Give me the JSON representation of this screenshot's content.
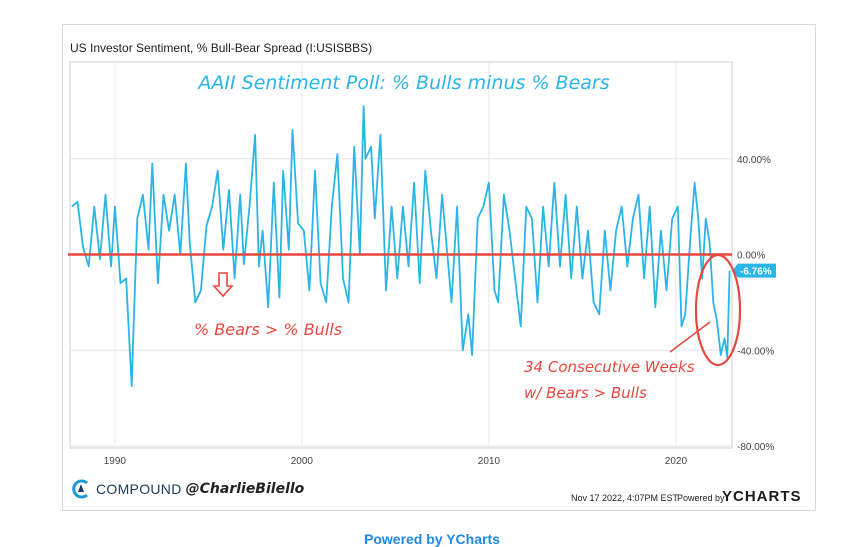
{
  "chart_data": {
    "type": "line",
    "title": "US Investor Sentiment, % Bull-Bear Spread (I:USISBBS)",
    "xlabel": "",
    "ylabel": "",
    "xlim": [
      1987.6,
      2023.0
    ],
    "ylim": [
      -80,
      80
    ],
    "x_ticks": [
      {
        "value": 1990,
        "label": "1990"
      },
      {
        "value": 2000,
        "label": "2000"
      },
      {
        "value": 2010,
        "label": "2010"
      },
      {
        "value": 2020,
        "label": "2020"
      }
    ],
    "y_ticks": [
      {
        "value": 40,
        "label": "40.00%"
      },
      {
        "value": 0,
        "label": "0.00%"
      },
      {
        "value": -40,
        "label": "-40.00%"
      },
      {
        "value": -80,
        "label": "-80.00%"
      }
    ],
    "grid": true,
    "series": [
      {
        "name": "US Investor Sentiment, % Bull-Bear Spread",
        "color": "#29b6e6",
        "last_value_label": "-6.76%",
        "last_value": -6.76,
        "points": [
          [
            1987.7,
            20
          ],
          [
            1988.0,
            22
          ],
          [
            1988.3,
            3
          ],
          [
            1988.6,
            -5
          ],
          [
            1988.9,
            20
          ],
          [
            1989.2,
            -2
          ],
          [
            1989.5,
            25
          ],
          [
            1989.8,
            -5
          ],
          [
            1990.0,
            20
          ],
          [
            1990.3,
            -12
          ],
          [
            1990.6,
            -10
          ],
          [
            1990.8,
            -40
          ],
          [
            1990.9,
            -55
          ],
          [
            1991.0,
            -30
          ],
          [
            1991.2,
            15
          ],
          [
            1991.5,
            25
          ],
          [
            1991.8,
            2
          ],
          [
            1992.0,
            38
          ],
          [
            1992.3,
            -12
          ],
          [
            1992.6,
            25
          ],
          [
            1992.9,
            10
          ],
          [
            1993.2,
            25
          ],
          [
            1993.5,
            0
          ],
          [
            1993.8,
            38
          ],
          [
            1994.0,
            5
          ],
          [
            1994.3,
            -20
          ],
          [
            1994.6,
            -15
          ],
          [
            1994.9,
            12
          ],
          [
            1995.2,
            20
          ],
          [
            1995.5,
            35
          ],
          [
            1995.8,
            2
          ],
          [
            1996.1,
            27
          ],
          [
            1996.4,
            -10
          ],
          [
            1996.7,
            25
          ],
          [
            1996.9,
            -4
          ],
          [
            1997.2,
            20
          ],
          [
            1997.5,
            50
          ],
          [
            1997.7,
            -5
          ],
          [
            1997.9,
            10
          ],
          [
            1998.2,
            -22
          ],
          [
            1998.5,
            30
          ],
          [
            1998.8,
            -18
          ],
          [
            1999.0,
            35
          ],
          [
            1999.3,
            2
          ],
          [
            1999.5,
            52
          ],
          [
            1999.8,
            13
          ],
          [
            2000.1,
            10
          ],
          [
            2000.4,
            -15
          ],
          [
            2000.7,
            35
          ],
          [
            2001.0,
            -12
          ],
          [
            2001.3,
            -20
          ],
          [
            2001.6,
            20
          ],
          [
            2001.9,
            42
          ],
          [
            2002.2,
            -10
          ],
          [
            2002.5,
            -20
          ],
          [
            2002.8,
            45
          ],
          [
            2003.1,
            0
          ],
          [
            2003.3,
            62
          ],
          [
            2003.4,
            40
          ],
          [
            2003.7,
            45
          ],
          [
            2003.9,
            15
          ],
          [
            2004.2,
            50
          ],
          [
            2004.5,
            -15
          ],
          [
            2004.8,
            20
          ],
          [
            2005.1,
            -10
          ],
          [
            2005.4,
            20
          ],
          [
            2005.7,
            -5
          ],
          [
            2006.0,
            30
          ],
          [
            2006.3,
            -12
          ],
          [
            2006.6,
            35
          ],
          [
            2006.9,
            10
          ],
          [
            2007.2,
            -10
          ],
          [
            2007.5,
            25
          ],
          [
            2007.8,
            -2
          ],
          [
            2008.0,
            -20
          ],
          [
            2008.3,
            20
          ],
          [
            2008.6,
            -40
          ],
          [
            2008.9,
            -25
          ],
          [
            2009.1,
            -42
          ],
          [
            2009.4,
            15
          ],
          [
            2009.7,
            20
          ],
          [
            2010.0,
            30
          ],
          [
            2010.3,
            -15
          ],
          [
            2010.5,
            -20
          ],
          [
            2010.8,
            25
          ],
          [
            2011.1,
            10
          ],
          [
            2011.4,
            -10
          ],
          [
            2011.7,
            -30
          ],
          [
            2012.0,
            20
          ],
          [
            2012.3,
            15
          ],
          [
            2012.6,
            -20
          ],
          [
            2012.9,
            20
          ],
          [
            2013.2,
            -5
          ],
          [
            2013.5,
            30
          ],
          [
            2013.8,
            -5
          ],
          [
            2014.1,
            25
          ],
          [
            2014.4,
            -10
          ],
          [
            2014.7,
            20
          ],
          [
            2015.0,
            -10
          ],
          [
            2015.3,
            10
          ],
          [
            2015.6,
            -20
          ],
          [
            2015.9,
            -25
          ],
          [
            2016.2,
            10
          ],
          [
            2016.5,
            -15
          ],
          [
            2016.8,
            10
          ],
          [
            2017.1,
            20
          ],
          [
            2017.4,
            -5
          ],
          [
            2017.7,
            15
          ],
          [
            2018.0,
            25
          ],
          [
            2018.3,
            -10
          ],
          [
            2018.6,
            20
          ],
          [
            2018.9,
            -22
          ],
          [
            2019.2,
            10
          ],
          [
            2019.5,
            -15
          ],
          [
            2019.8,
            15
          ],
          [
            2020.1,
            20
          ],
          [
            2020.3,
            -30
          ],
          [
            2020.5,
            -25
          ],
          [
            2020.8,
            10
          ],
          [
            2021.0,
            30
          ],
          [
            2021.2,
            15
          ],
          [
            2021.4,
            -10
          ],
          [
            2021.6,
            15
          ],
          [
            2021.8,
            5
          ],
          [
            2022.0,
            -20
          ],
          [
            2022.2,
            -28
          ],
          [
            2022.4,
            -42
          ],
          [
            2022.6,
            -35
          ],
          [
            2022.75,
            -43
          ],
          [
            2022.87,
            -6.76
          ]
        ]
      }
    ],
    "annotations": {
      "headline": "AAII Sentiment Poll: % Bulls minus % Bears",
      "bears_label": "% Bears > % Bulls",
      "weeks_line1": "34 Consecutive Weeks",
      "weeks_line2": "w/ Bears > Bulls",
      "zero_line_color": "#e8473f",
      "annotation_color": "#e8473f",
      "headline_color": "#29b6e6"
    }
  },
  "footer": {
    "logo_text": "COMPOUND",
    "handle": "@CharlieBilello",
    "timestamp": "Nov 17 2022, 4:07PM EST.",
    "powered_small": "Powered by",
    "ycharts_logo": "YCHARTS",
    "powered_link": "Powered by YCharts"
  }
}
